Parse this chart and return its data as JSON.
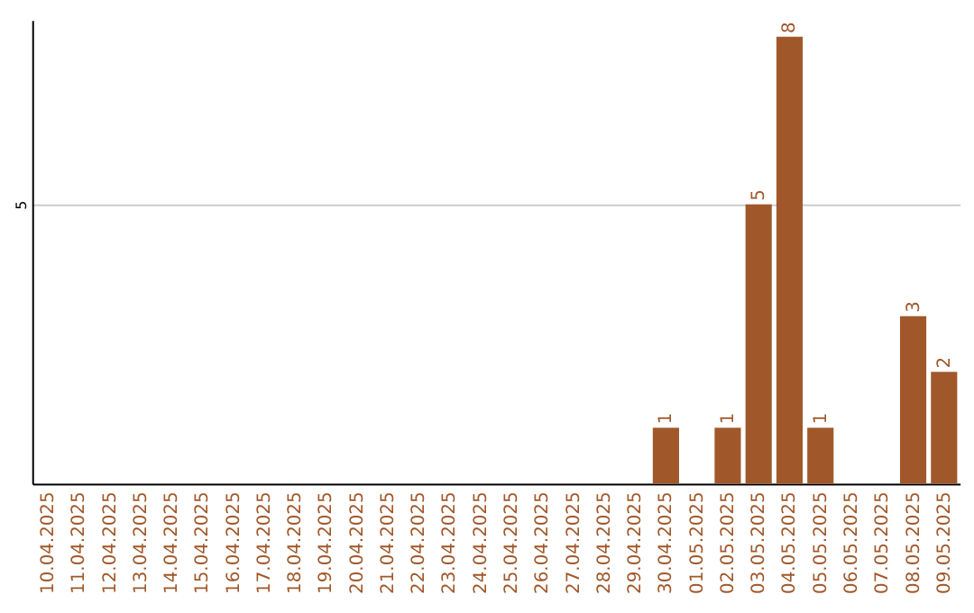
{
  "chart_data": {
    "type": "bar",
    "categories": [
      "10.04.2025",
      "11.04.2025",
      "12.04.2025",
      "13.04.2025",
      "14.04.2025",
      "15.04.2025",
      "16.04.2025",
      "17.04.2025",
      "18.04.2025",
      "19.04.2025",
      "20.04.2025",
      "21.04.2025",
      "22.04.2025",
      "23.04.2025",
      "24.04.2025",
      "25.04.2025",
      "26.04.2025",
      "27.04.2025",
      "28.04.2025",
      "29.04.2025",
      "30.04.2025",
      "01.05.2025",
      "02.05.2025",
      "03.05.2025",
      "04.05.2025",
      "05.05.2025",
      "06.05.2025",
      "07.05.2025",
      "08.05.2025",
      "09.05.2025"
    ],
    "values": [
      null,
      null,
      null,
      null,
      null,
      null,
      null,
      null,
      null,
      null,
      null,
      null,
      null,
      null,
      null,
      null,
      null,
      null,
      null,
      null,
      1,
      null,
      1,
      5,
      8,
      1,
      null,
      null,
      3,
      2
    ],
    "data_labels": true,
    "color": "#a0582a",
    "ylim": [
      0,
      8.3
    ],
    "yticks": [
      5
    ],
    "grid": "y"
  }
}
